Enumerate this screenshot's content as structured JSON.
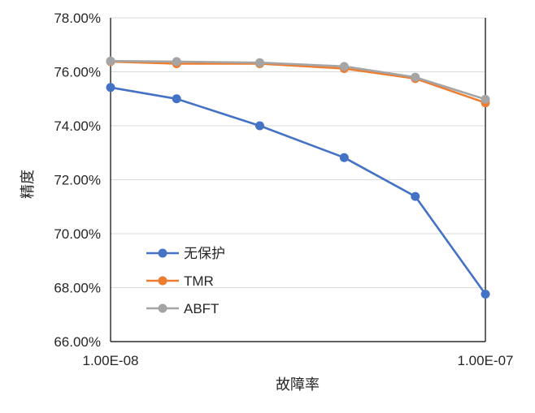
{
  "chart_data": {
    "type": "line",
    "title": "",
    "xlabel": "故障率",
    "ylabel": "精度",
    "x_scale": "log",
    "xlim": [
      1e-08,
      1e-07
    ],
    "ylim": [
      66,
      78
    ],
    "x_tick_labels": [
      "1.00E-08",
      "1.00E-07"
    ],
    "y_ticks": [
      66,
      68,
      70,
      72,
      74,
      76,
      78
    ],
    "y_tick_labels": [
      "66.00%",
      "68.00%",
      "70.00%",
      "72.00%",
      "74.00%",
      "76.00%",
      "78.00%"
    ],
    "grid": "horizontal",
    "legend_position": "lower-left",
    "x": [
      1e-08,
      1.5e-08,
      2.5e-08,
      4.2e-08,
      6.5e-08,
      1e-07
    ],
    "series": [
      {
        "name": "无保护",
        "color": "#4472C4",
        "values": [
          75.42,
          75.0,
          74.0,
          72.82,
          71.38,
          67.76
        ]
      },
      {
        "name": "TMR",
        "color": "#ED7D31",
        "values": [
          76.38,
          76.3,
          76.3,
          76.12,
          75.75,
          74.85
        ]
      },
      {
        "name": "ABFT",
        "color": "#A5A5A5",
        "values": [
          76.4,
          76.38,
          76.34,
          76.2,
          75.8,
          74.98
        ]
      }
    ]
  }
}
